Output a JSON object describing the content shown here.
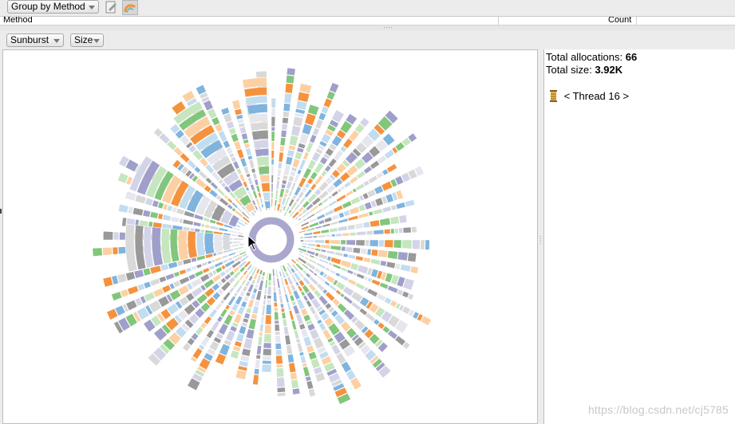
{
  "toolbar": {
    "group_by_label": "Group by Method",
    "icons": [
      "export-icon",
      "sunburst-view-icon"
    ]
  },
  "table": {
    "columns": [
      "Method",
      "Count"
    ]
  },
  "chart_toolbar": {
    "chart_type_label": "Sunburst",
    "metric_label": "Size"
  },
  "info": {
    "total_allocations_label": "Total allocations:",
    "total_allocations_value": "66",
    "total_size_label": "Total size:",
    "total_size_value": "3.92K",
    "thread_label": "< Thread 16 >",
    "thread_icon": "thread-icon"
  },
  "watermark": "https://blog.csdn.net/cj5785",
  "colors": {
    "center_ring": "#aaa7cf",
    "palette": [
      "#7fb4de",
      "#c2dcf0",
      "#f5923e",
      "#fdd0a3",
      "#82c67c",
      "#c5e6bf",
      "#a09fcb",
      "#d4d4e8",
      "#999999",
      "#d9d9d9",
      "#e6e6ee"
    ]
  }
}
